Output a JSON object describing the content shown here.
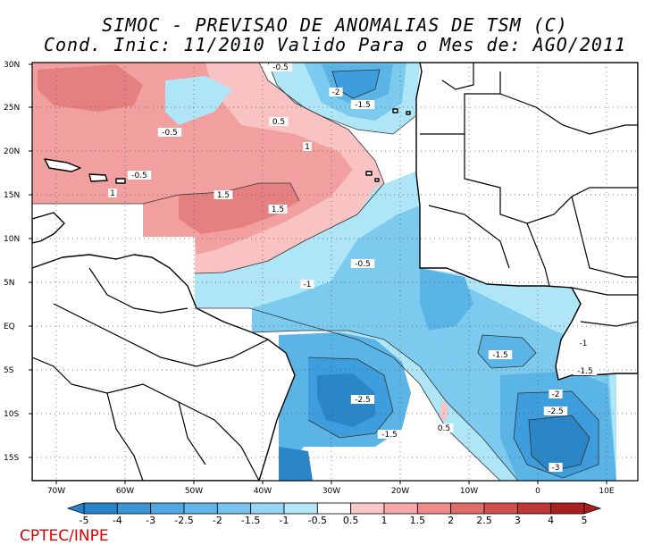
{
  "title": {
    "line1": "SIMOC - PREVISAO DE ANOMALIAS DE TSM (C)",
    "line2": "Cond. Inic: 11/2010   Valido Para o Mes de: AGO/2011"
  },
  "axes": {
    "lat_labels": [
      "30N",
      "25N",
      "20N",
      "15N",
      "10N",
      "5N",
      "EQ",
      "5S",
      "10S",
      "15S"
    ],
    "lon_labels": [
      "70W",
      "60W",
      "50W",
      "40W",
      "30W",
      "20W",
      "10W",
      "0",
      "10E"
    ],
    "grid": "dotted"
  },
  "contour_labels": [
    "-0.5",
    "-2",
    "-1.5",
    "-0.5",
    "0.5",
    "1",
    "-0.5",
    "1",
    "1.5",
    "1.5",
    "-0.5",
    "-1",
    "-1",
    "-1.5",
    "-1.5",
    "-2",
    "-2.5",
    "-2.5",
    "-1.5",
    "0.5",
    "-3"
  ],
  "colorbar": {
    "labels": [
      "-5",
      "-4",
      "-3",
      "-2.5",
      "-2",
      "-1.5",
      "-1",
      "-0.5",
      "0.5",
      "1",
      "1.5",
      "2",
      "2.5",
      "3",
      "4",
      "5"
    ],
    "colors": [
      "#2882c8",
      "#3c96d6",
      "#50a8e2",
      "#64b6ea",
      "#78c4f0",
      "#96d4f6",
      "#b4e6fa",
      "#ffffff",
      "#ffc8c8",
      "#f8a8a8",
      "#ee8a8a",
      "#e06c6c",
      "#d05050",
      "#be3838",
      "#aa2020"
    ]
  },
  "colors": {
    "land": "#ffffff",
    "ocean_neutral": "#ffffff",
    "pos_0_5": "#f9c3c3",
    "pos_1": "#f29f9f",
    "pos_1_5": "#e58080",
    "neg_0_5": "#aee6f7",
    "neg_1": "#7ccbee",
    "neg_1_5": "#5ab4e6",
    "neg_2": "#3e9ddc"
  },
  "credit": "CPTEC/INPE"
}
